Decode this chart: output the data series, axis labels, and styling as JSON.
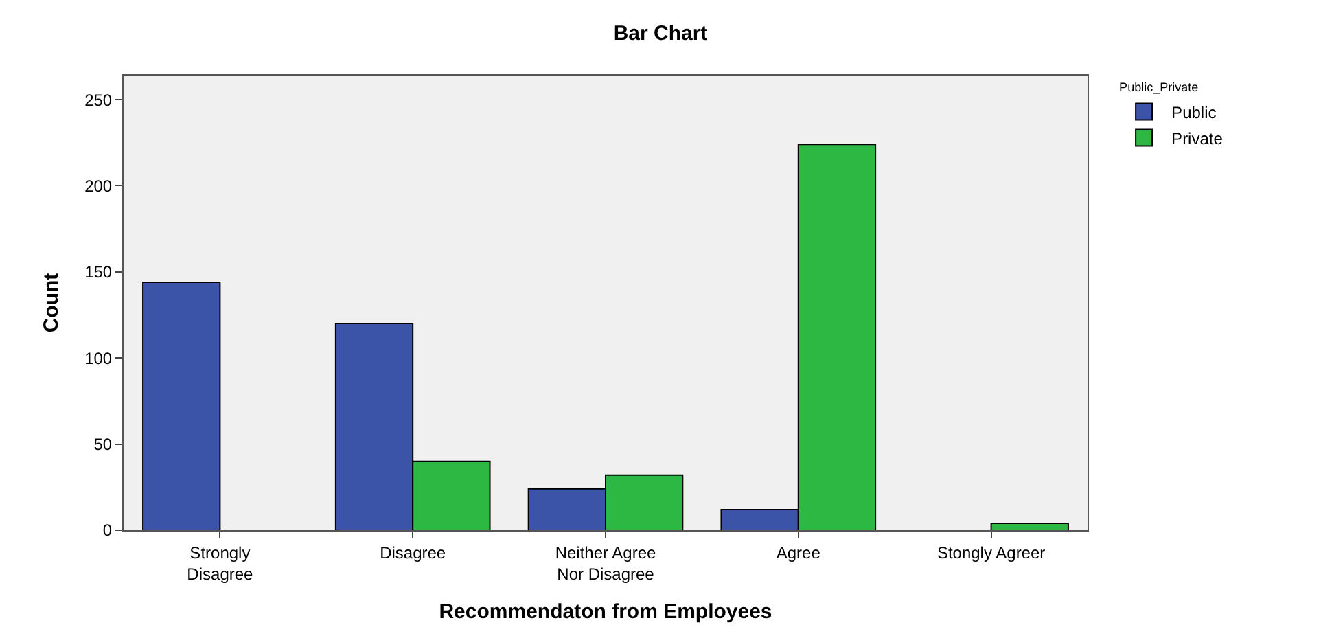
{
  "chart_data": {
    "type": "bar",
    "title": "Bar Chart",
    "xlabel": "Recommendaton from Employees",
    "ylabel": "Count",
    "legend_title": "Public_Private",
    "categories": [
      "Strongly\nDisagree",
      "Disagree",
      "Neither Agree\nNor Disagree",
      "Agree",
      "Stongly Agreer"
    ],
    "series": [
      {
        "name": "Public",
        "color": "#3b54a8",
        "values": [
          144,
          120,
          24,
          12,
          null
        ]
      },
      {
        "name": "Private",
        "color": "#2db843",
        "values": [
          null,
          40,
          32,
          224,
          4
        ]
      }
    ],
    "ylim": [
      0,
      264
    ],
    "yticks": [
      0,
      50,
      100,
      150,
      200,
      250
    ],
    "grid": false,
    "legend": "top right"
  }
}
